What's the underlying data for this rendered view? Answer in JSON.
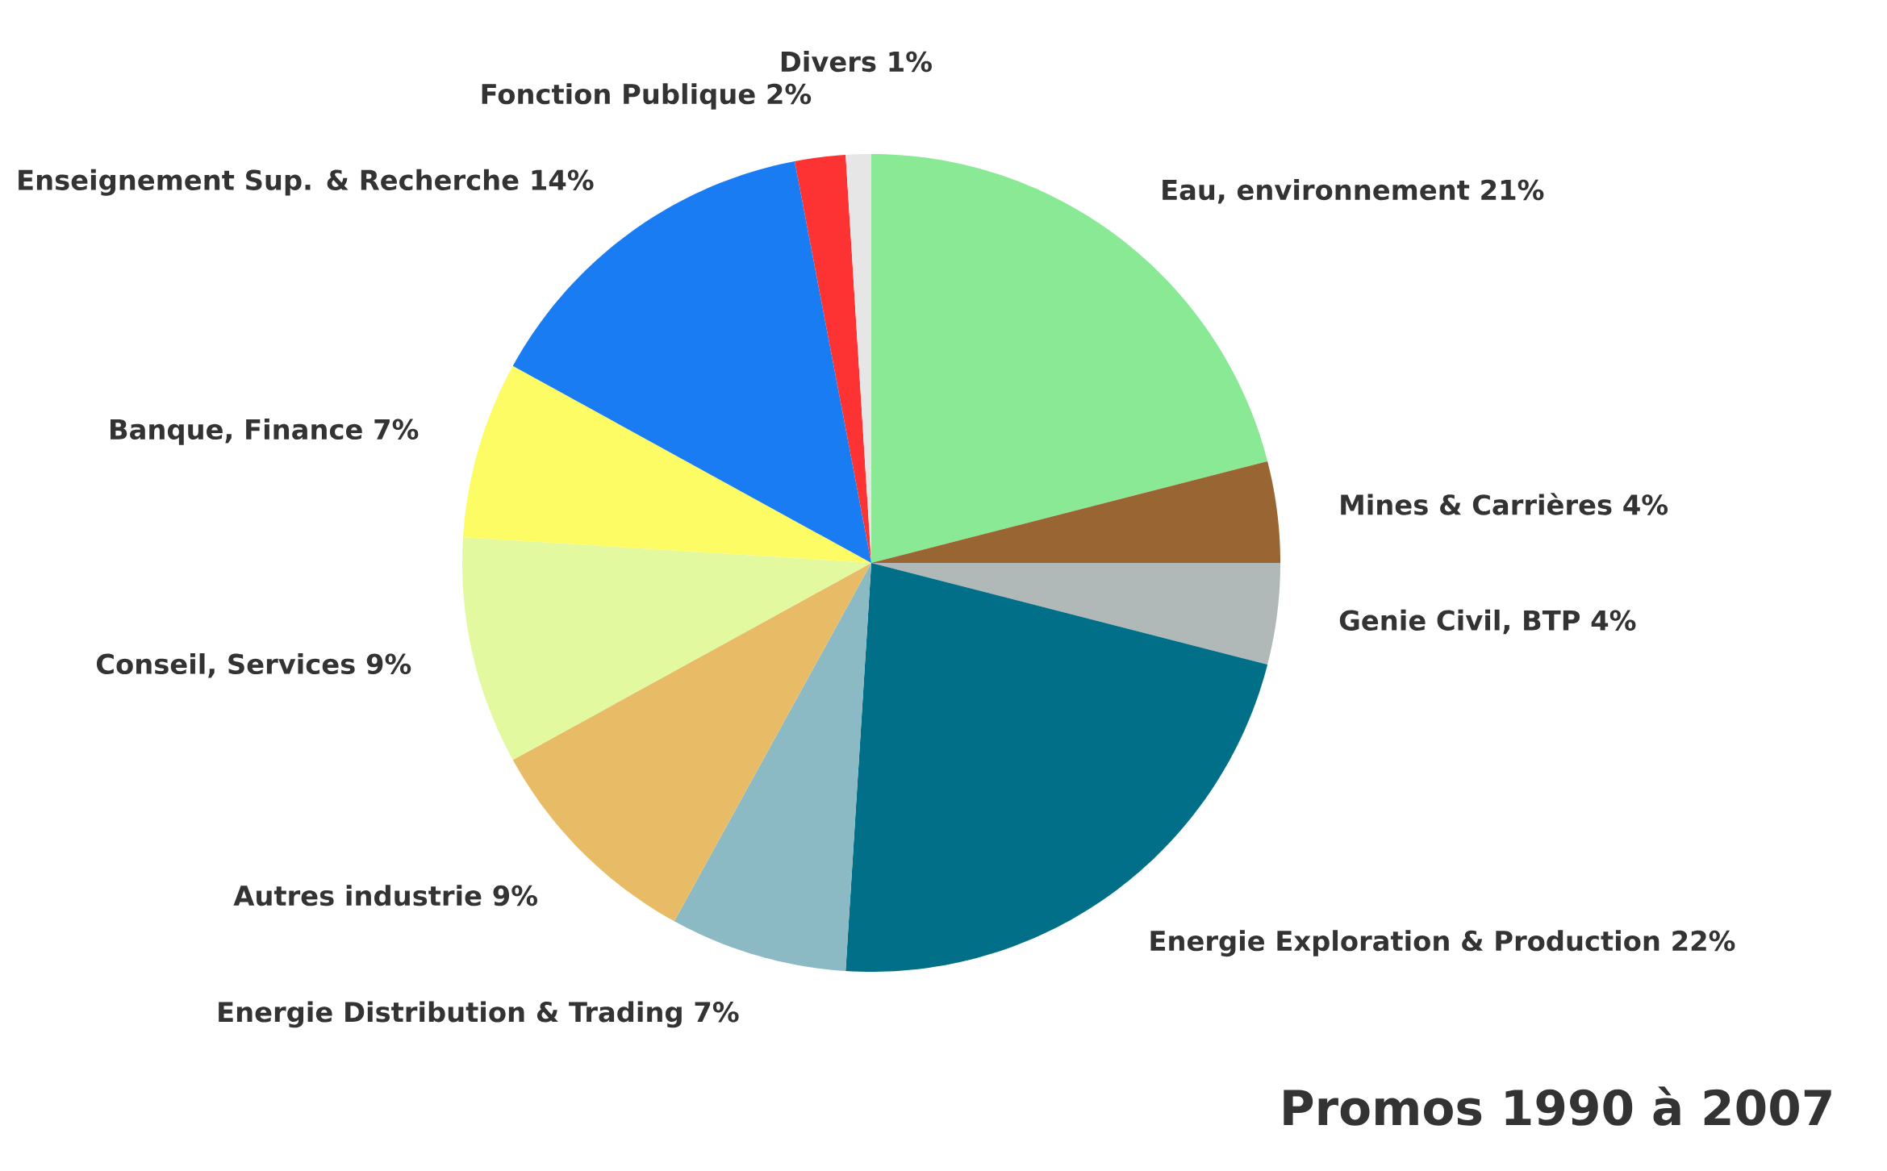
{
  "chart_data": {
    "type": "pie",
    "title": "Promos 1990 à 2007",
    "categories": [
      "Eau, environnement",
      "Mines & Carrières",
      "Genie Civil, BTP",
      "Energie Exploration & Production",
      "Energie Distribution & Trading",
      "Autres industrie",
      "Conseil, Services",
      "Banque, Finance",
      "Enseignement Sup. & Recherche",
      "Fonction Publique",
      "Divers"
    ],
    "values": [
      21,
      4,
      4,
      22,
      7,
      9,
      9,
      7,
      14,
      2,
      1
    ],
    "colors": [
      "#8ae994",
      "#996633",
      "#b0b8b8",
      "#006f87",
      "#8bbac4",
      "#e8bc66",
      "#e2f9a0",
      "#fefc64",
      "#1a7cf2",
      "#fd3232",
      "#e6e6e6"
    ],
    "value_labels": [
      "21%",
      "4%",
      "4%",
      "22%",
      "7%",
      "9%",
      "9%",
      "7%",
      "14%",
      "2%",
      "1%"
    ]
  }
}
